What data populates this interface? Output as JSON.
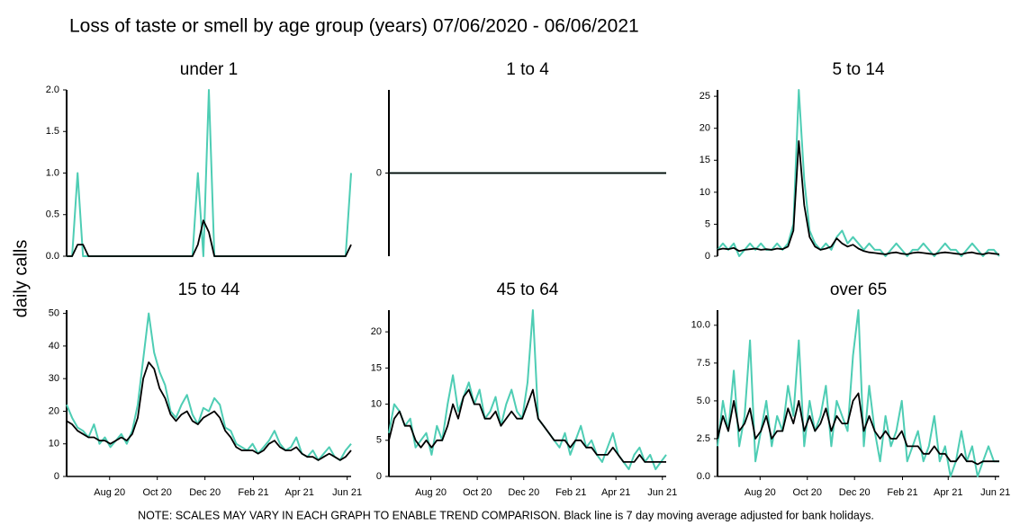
{
  "title": "Loss of taste or smell by age group (years) 07/06/2020 - 06/06/2021",
  "y_label": "daily calls",
  "note": "NOTE: SCALES MAY VARY IN EACH GRAPH TO ENABLE TREND COMPARISON. Black line is 7 day moving average adjusted for bank holidays.",
  "chart_data": [
    {
      "type": "line",
      "title": "under 1",
      "xlim": [
        0,
        364
      ],
      "ylim": [
        0,
        2
      ],
      "yticks": [
        {
          "value": 0,
          "label": "0.0"
        },
        {
          "value": 0.5,
          "label": "0.5"
        },
        {
          "value": 1,
          "label": "1.0"
        },
        {
          "value": 1.5,
          "label": "1.5"
        },
        {
          "value": 2,
          "label": "2.0"
        }
      ],
      "x": [
        0,
        7,
        14,
        21,
        28,
        35,
        42,
        49,
        56,
        63,
        70,
        77,
        84,
        91,
        98,
        105,
        112,
        119,
        126,
        133,
        140,
        147,
        154,
        161,
        168,
        175,
        182,
        189,
        196,
        203,
        210,
        217,
        224,
        231,
        238,
        245,
        252,
        259,
        266,
        273,
        280,
        287,
        294,
        301,
        308,
        315,
        322,
        329,
        336,
        343,
        350,
        357,
        364
      ],
      "series": [
        {
          "color": "#4ecdb4",
          "values": [
            0,
            0,
            1,
            0,
            0,
            0,
            0,
            0,
            0,
            0,
            0,
            0,
            0,
            0,
            0,
            0,
            0,
            0,
            0,
            0,
            0,
            0,
            0,
            0,
            1,
            0,
            2,
            0,
            0,
            0,
            0,
            0,
            0,
            0,
            0,
            0,
            0,
            0,
            0,
            0,
            0,
            0,
            0,
            0,
            0,
            0,
            0,
            0,
            0,
            0,
            0,
            0,
            1
          ]
        },
        {
          "color": "#000000",
          "values": [
            0,
            0,
            0.14,
            0.14,
            0,
            0,
            0,
            0,
            0,
            0,
            0,
            0,
            0,
            0,
            0,
            0,
            0,
            0,
            0,
            0,
            0,
            0,
            0,
            0,
            0.14,
            0.43,
            0.29,
            0,
            0,
            0,
            0,
            0,
            0,
            0,
            0,
            0,
            0,
            0,
            0,
            0,
            0,
            0,
            0,
            0,
            0,
            0,
            0,
            0,
            0,
            0,
            0,
            0,
            0.14
          ]
        }
      ]
    },
    {
      "type": "line",
      "title": "1 to 4",
      "xlim": [
        0,
        364
      ],
      "ylim": [
        -1,
        1
      ],
      "yticks": [
        0
      ],
      "x": [
        0,
        7,
        14,
        21,
        28,
        35,
        42,
        49,
        56,
        63,
        70,
        77,
        84,
        91,
        98,
        105,
        112,
        119,
        126,
        133,
        140,
        147,
        154,
        161,
        168,
        175,
        182,
        189,
        196,
        203,
        210,
        217,
        224,
        231,
        238,
        245,
        252,
        259,
        266,
        273,
        280,
        287,
        294,
        301,
        308,
        315,
        322,
        329,
        336,
        343,
        350,
        357,
        364
      ],
      "series": [
        {
          "color": "#4ecdb4",
          "values": [
            0,
            0,
            0,
            0,
            0,
            0,
            0,
            0,
            0,
            0,
            0,
            0,
            0,
            0,
            0,
            0,
            0,
            0,
            0,
            0,
            0,
            0,
            0,
            0,
            0,
            0,
            0,
            0,
            0,
            0,
            0,
            0,
            0,
            0,
            0,
            0,
            0,
            0,
            0,
            0,
            0,
            0,
            0,
            0,
            0,
            0,
            0,
            0,
            0,
            0,
            0,
            0,
            0
          ]
        },
        {
          "color": "#000000",
          "values": [
            0,
            0,
            0,
            0,
            0,
            0,
            0,
            0,
            0,
            0,
            0,
            0,
            0,
            0,
            0,
            0,
            0,
            0,
            0,
            0,
            0,
            0,
            0,
            0,
            0,
            0,
            0,
            0,
            0,
            0,
            0,
            0,
            0,
            0,
            0,
            0,
            0,
            0,
            0,
            0,
            0,
            0,
            0,
            0,
            0,
            0,
            0,
            0,
            0,
            0,
            0,
            0,
            0
          ]
        }
      ]
    },
    {
      "type": "line",
      "title": "5 to 14",
      "xlim": [
        0,
        364
      ],
      "ylim": [
        0,
        26
      ],
      "yticks": [
        0,
        5,
        10,
        15,
        20,
        25
      ],
      "x": [
        0,
        7,
        14,
        21,
        28,
        35,
        42,
        49,
        56,
        63,
        70,
        77,
        84,
        91,
        98,
        105,
        112,
        119,
        126,
        133,
        140,
        147,
        154,
        161,
        168,
        175,
        182,
        189,
        196,
        203,
        210,
        217,
        224,
        231,
        238,
        245,
        252,
        259,
        266,
        273,
        280,
        287,
        294,
        301,
        308,
        315,
        322,
        329,
        336,
        343,
        350,
        357,
        364
      ],
      "series": [
        {
          "color": "#4ecdb4",
          "values": [
            1,
            2,
            1,
            2,
            0,
            1,
            2,
            1,
            2,
            1,
            1,
            2,
            1,
            2,
            5,
            26,
            12,
            4,
            2,
            1,
            2,
            1,
            3,
            4,
            2,
            3,
            2,
            1,
            2,
            1,
            1,
            0,
            1,
            2,
            1,
            0,
            1,
            1,
            2,
            1,
            0,
            1,
            2,
            1,
            1,
            0,
            1,
            2,
            1,
            0,
            1,
            1,
            0
          ]
        },
        {
          "color": "#000000",
          "values": [
            1,
            1.2,
            1.1,
            1.3,
            0.8,
            1,
            1.1,
            1.2,
            1,
            1.1,
            1,
            1.2,
            1.1,
            1.5,
            4,
            18,
            8,
            3,
            1.5,
            1,
            1.2,
            1.5,
            2.8,
            2,
            1.5,
            1.8,
            1.2,
            0.8,
            0.6,
            0.5,
            0.4,
            0.3,
            0.5,
            0.6,
            0.4,
            0.3,
            0.5,
            0.6,
            0.5,
            0.4,
            0.3,
            0.5,
            0.6,
            0.5,
            0.4,
            0.3,
            0.5,
            0.6,
            0.4,
            0.3,
            0.5,
            0.4,
            0.3
          ]
        }
      ]
    },
    {
      "type": "line",
      "title": "15 to 44",
      "xlim": [
        0,
        364
      ],
      "ylim": [
        0,
        51
      ],
      "yticks": [
        0,
        10,
        20,
        30,
        40,
        50
      ],
      "xticks": [
        {
          "value": 55,
          "label": "Aug 20"
        },
        {
          "value": 116,
          "label": "Oct 20"
        },
        {
          "value": 177,
          "label": "Dec 20"
        },
        {
          "value": 239,
          "label": "Feb 21"
        },
        {
          "value": 298,
          "label": "Apr 21"
        },
        {
          "value": 359,
          "label": "Jun 21"
        }
      ],
      "x": [
        0,
        7,
        14,
        21,
        28,
        35,
        42,
        49,
        56,
        63,
        70,
        77,
        84,
        91,
        98,
        105,
        112,
        119,
        126,
        133,
        140,
        147,
        154,
        161,
        168,
        175,
        182,
        189,
        196,
        203,
        210,
        217,
        224,
        231,
        238,
        245,
        252,
        259,
        266,
        273,
        280,
        287,
        294,
        301,
        308,
        315,
        322,
        329,
        336,
        343,
        350,
        357,
        364
      ],
      "series": [
        {
          "color": "#4ecdb4",
          "values": [
            22,
            18,
            15,
            14,
            12,
            16,
            10,
            12,
            9,
            11,
            13,
            10,
            14,
            22,
            36,
            50,
            38,
            32,
            28,
            20,
            18,
            22,
            25,
            19,
            16,
            21,
            20,
            24,
            22,
            15,
            14,
            10,
            9,
            8,
            10,
            7,
            9,
            11,
            14,
            10,
            8,
            9,
            12,
            7,
            6,
            8,
            5,
            7,
            9,
            6,
            5,
            8,
            10
          ]
        },
        {
          "color": "#000000",
          "values": [
            17,
            16,
            14,
            13,
            12,
            12,
            11,
            11,
            10,
            11,
            12,
            11,
            13,
            18,
            30,
            35,
            33,
            27,
            24,
            19,
            17,
            19,
            20,
            17,
            16,
            18,
            19,
            20,
            18,
            14,
            12,
            9,
            8,
            8,
            8,
            7,
            8,
            10,
            11,
            9,
            8,
            8,
            9,
            7,
            6,
            6,
            5,
            6,
            7,
            6,
            5,
            6,
            8
          ]
        }
      ]
    },
    {
      "type": "line",
      "title": "45 to 64",
      "xlim": [
        0,
        364
      ],
      "ylim": [
        0,
        23
      ],
      "yticks": [
        0,
        5,
        10,
        15,
        20
      ],
      "xticks": [
        {
          "value": 55,
          "label": "Aug 20"
        },
        {
          "value": 116,
          "label": "Oct 20"
        },
        {
          "value": 177,
          "label": "Dec 20"
        },
        {
          "value": 239,
          "label": "Feb 21"
        },
        {
          "value": 298,
          "label": "Apr 21"
        },
        {
          "value": 359,
          "label": "Jun 21"
        }
      ],
      "x": [
        0,
        7,
        14,
        21,
        28,
        35,
        42,
        49,
        56,
        63,
        70,
        77,
        84,
        91,
        98,
        105,
        112,
        119,
        126,
        133,
        140,
        147,
        154,
        161,
        168,
        175,
        182,
        189,
        196,
        203,
        210,
        217,
        224,
        231,
        238,
        245,
        252,
        259,
        266,
        273,
        280,
        287,
        294,
        301,
        308,
        315,
        322,
        329,
        336,
        343,
        350,
        357,
        364
      ],
      "series": [
        {
          "color": "#4ecdb4",
          "values": [
            6,
            10,
            9,
            7,
            8,
            4,
            5,
            6,
            3,
            7,
            5,
            10,
            14,
            9,
            11,
            13,
            10,
            12,
            8,
            9,
            11,
            7,
            10,
            12,
            9,
            8,
            13,
            23,
            8,
            7,
            6,
            5,
            4,
            6,
            3,
            5,
            7,
            4,
            5,
            3,
            2,
            4,
            6,
            3,
            2,
            1,
            3,
            4,
            2,
            3,
            1,
            2,
            3
          ]
        },
        {
          "color": "#000000",
          "values": [
            5,
            8,
            9,
            7,
            7,
            5,
            4,
            5,
            4,
            5,
            5,
            7,
            10,
            8,
            11,
            12,
            10,
            10,
            8,
            8,
            9,
            7,
            8,
            9,
            8,
            8,
            10,
            12,
            8,
            7,
            6,
            5,
            5,
            5,
            4,
            5,
            5,
            4,
            4,
            3,
            3,
            3,
            4,
            3,
            2,
            2,
            2,
            3,
            2,
            2,
            2,
            2,
            2
          ]
        }
      ]
    },
    {
      "type": "line",
      "title": "over 65",
      "xlim": [
        0,
        364
      ],
      "ylim": [
        0,
        11
      ],
      "yticks": [
        {
          "value": 0,
          "label": "0.0"
        },
        {
          "value": 2.5,
          "label": "2.5"
        },
        {
          "value": 5,
          "label": "5.0"
        },
        {
          "value": 7.5,
          "label": "7.5"
        },
        {
          "value": 10,
          "label": "10.0"
        }
      ],
      "xticks": [
        {
          "value": 55,
          "label": "Aug 20"
        },
        {
          "value": 116,
          "label": "Oct 20"
        },
        {
          "value": 177,
          "label": "Dec 20"
        },
        {
          "value": 239,
          "label": "Feb 21"
        },
        {
          "value": 298,
          "label": "Apr 21"
        },
        {
          "value": 359,
          "label": "Jun 21"
        }
      ],
      "x": [
        0,
        7,
        14,
        21,
        28,
        35,
        42,
        49,
        56,
        63,
        70,
        77,
        84,
        91,
        98,
        105,
        112,
        119,
        126,
        133,
        140,
        147,
        154,
        161,
        168,
        175,
        182,
        189,
        196,
        203,
        210,
        217,
        224,
        231,
        238,
        245,
        252,
        259,
        266,
        273,
        280,
        287,
        294,
        301,
        308,
        315,
        322,
        329,
        336,
        343,
        350,
        357,
        364
      ],
      "series": [
        {
          "color": "#4ecdb4",
          "values": [
            2,
            5,
            3,
            7,
            2,
            4,
            9,
            1,
            3,
            5,
            2,
            4,
            3,
            6,
            4,
            9,
            2,
            5,
            3,
            4,
            6,
            2,
            5,
            4,
            3,
            8,
            11,
            2,
            6,
            3,
            1,
            4,
            2,
            3,
            5,
            1,
            2,
            3,
            1,
            2,
            4,
            1,
            2,
            0,
            1,
            3,
            1,
            2,
            0,
            1,
            2,
            1,
            1
          ]
        },
        {
          "color": "#000000",
          "values": [
            2.5,
            4,
            3,
            5,
            3,
            3.5,
            4.5,
            2.5,
            3,
            4,
            2.5,
            3,
            3,
            4.5,
            3.5,
            5,
            3,
            4,
            3,
            3.5,
            4.5,
            3,
            4,
            3.5,
            3.5,
            5,
            5.5,
            3,
            4,
            3,
            2.5,
            3,
            2.5,
            2.5,
            3,
            2,
            2,
            2,
            1.5,
            1.5,
            2,
            1.5,
            1.5,
            1,
            1,
            1.5,
            1,
            1,
            0.8,
            1,
            1,
            1,
            1
          ]
        }
      ]
    }
  ]
}
